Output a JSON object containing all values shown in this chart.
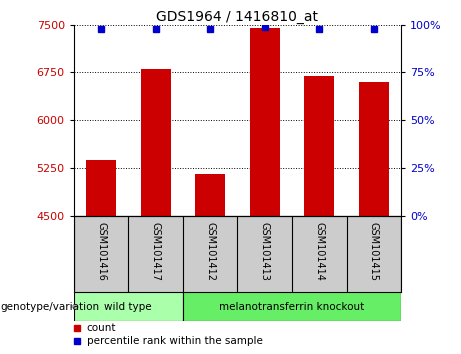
{
  "title": "GDS1964 / 1416810_at",
  "samples": [
    "GSM101416",
    "GSM101417",
    "GSM101412",
    "GSM101413",
    "GSM101414",
    "GSM101415"
  ],
  "counts": [
    5380,
    6800,
    5150,
    7450,
    6700,
    6600
  ],
  "percentile_ranks": [
    98,
    98,
    98,
    99,
    98,
    98
  ],
  "ylim_left": [
    4500,
    7500
  ],
  "yticks_left": [
    4500,
    5250,
    6000,
    6750,
    7500
  ],
  "ylim_right": [
    0,
    100
  ],
  "yticks_right": [
    0,
    25,
    50,
    75,
    100
  ],
  "bar_color": "#cc0000",
  "dot_color": "#0000cc",
  "groups": [
    {
      "label": "wild type",
      "indices": [
        0,
        1
      ],
      "color": "#aaffaa"
    },
    {
      "label": "melanotransferrin knockout",
      "indices": [
        2,
        3,
        4,
        5
      ],
      "color": "#66ee66"
    }
  ],
  "group_label": "genotype/variation",
  "legend_count_label": "count",
  "legend_percentile_label": "percentile rank within the sample",
  "background_color": "#ffffff",
  "tick_label_color_left": "#cc0000",
  "tick_label_color_right": "#0000cc",
  "grid_color": "#000000",
  "sample_bg_color": "#cccccc",
  "separator_color": "#000000"
}
